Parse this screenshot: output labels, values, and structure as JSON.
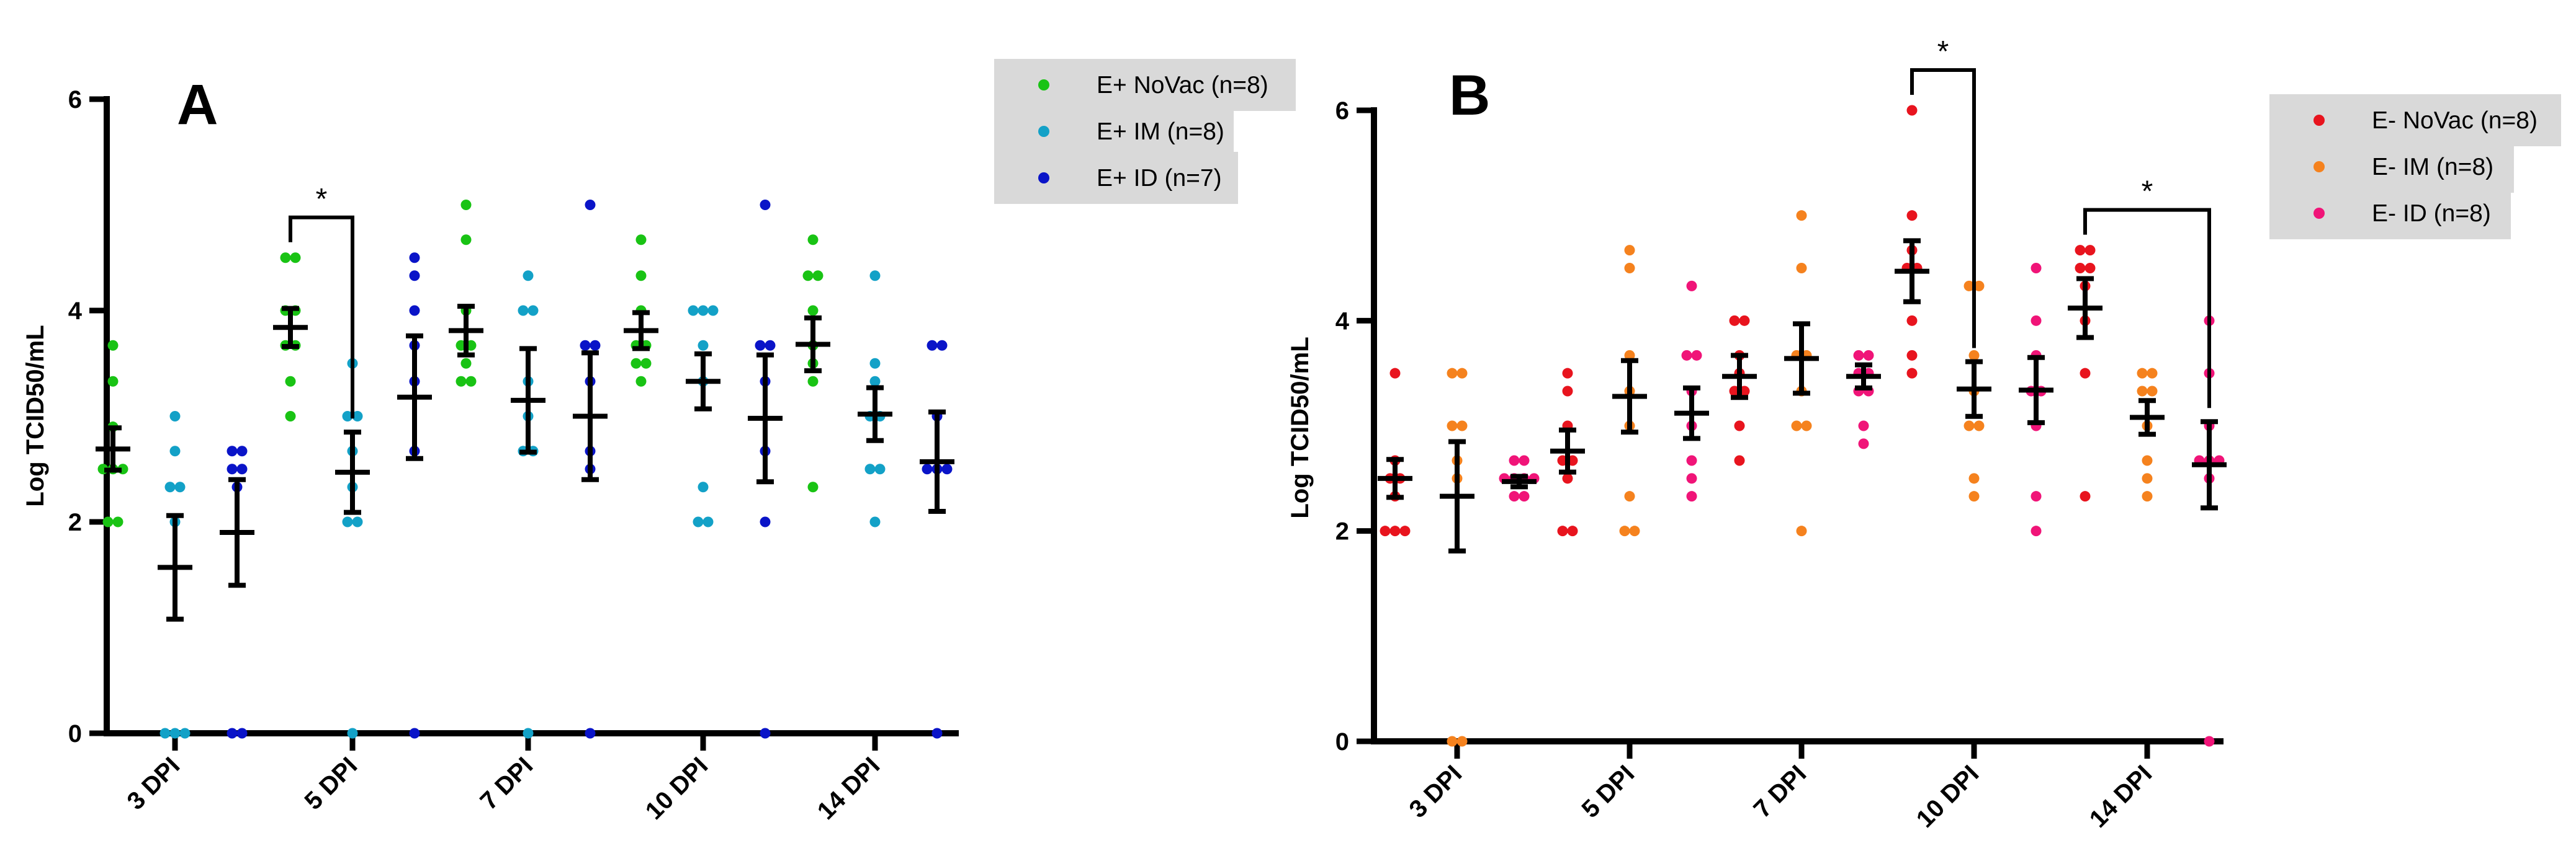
{
  "chart_data": [
    {
      "type": "scatter",
      "panel": "A",
      "ylabel": "Log TCID50/mL",
      "ylim": [
        0,
        6
      ],
      "yticks": [
        0,
        2,
        4,
        6
      ],
      "categories": [
        "3 DPI",
        "5 DPI",
        "7 DPI",
        "10 DPI",
        "14 DPI"
      ],
      "legend": {
        "position": "right-top"
      },
      "series": [
        {
          "name": "E+ NoVac (n=8)",
          "color": "#19c314",
          "points": [
            [
              3.67,
              3.33,
              2.9,
              2.5,
              2.5,
              2.5,
              2.0,
              2.0
            ],
            [
              4.5,
              4.5,
              4.0,
              4.0,
              3.67,
              3.67,
              3.33,
              3.0
            ],
            [
              5.0,
              4.67,
              4.0,
              3.67,
              3.67,
              3.5,
              3.33,
              3.33
            ],
            [
              4.67,
              4.33,
              4.0,
              3.67,
              3.67,
              3.5,
              3.5,
              3.33
            ],
            [
              4.67,
              4.33,
              4.33,
              4.0,
              3.67,
              3.5,
              3.33,
              2.33
            ]
          ],
          "mean": [
            2.69,
            3.84,
            3.81,
            3.81,
            3.68
          ],
          "sem": [
            0.2,
            0.18,
            0.23,
            0.17,
            0.25
          ]
        },
        {
          "name": "E+ IM (n=8)",
          "color": "#13a1c7",
          "points": [
            [
              3.0,
              2.67,
              2.33,
              2.33,
              2.0,
              0,
              0,
              0
            ],
            [
              3.5,
              3.0,
              3.0,
              2.67,
              2.33,
              2.0,
              2.0,
              0
            ],
            [
              4.33,
              4.0,
              4.0,
              3.33,
              3.0,
              2.67,
              2.67,
              0
            ],
            [
              4.0,
              4.0,
              4.0,
              3.67,
              3.33,
              2.33,
              2.0,
              2.0
            ],
            [
              4.33,
              3.5,
              3.33,
              3.0,
              3.0,
              2.5,
              2.5,
              2.0
            ]
          ],
          "mean": [
            1.57,
            2.47,
            3.15,
            3.33,
            3.02
          ],
          "sem": [
            0.49,
            0.38,
            0.49,
            0.26,
            0.25
          ]
        },
        {
          "name": "E+ ID (n=7)",
          "color": "#0a14c8",
          "points": [
            [
              2.67,
              2.67,
              2.5,
              2.5,
              2.33,
              0,
              0
            ],
            [
              4.5,
              4.33,
              4.0,
              3.67,
              3.33,
              2.67,
              0
            ],
            [
              5.0,
              3.67,
              3.67,
              3.33,
              2.67,
              2.5,
              0
            ],
            [
              5.0,
              3.67,
              3.67,
              3.33,
              2.67,
              2.0,
              0
            ],
            [
              3.67,
              3.67,
              3.0,
              2.5,
              2.5,
              2.5,
              0
            ]
          ],
          "mean": [
            1.9,
            3.18,
            3.0,
            2.98,
            2.57
          ],
          "sem": [
            0.5,
            0.58,
            0.6,
            0.6,
            0.47
          ]
        }
      ],
      "annotations": [
        {
          "text": "*",
          "between": [
            "E+ NoVac (n=8)",
            "E+ IM (n=8)"
          ],
          "category": "5 DPI"
        }
      ]
    },
    {
      "type": "scatter",
      "panel": "B",
      "ylabel": "Log TCID50/mL",
      "ylim": [
        0,
        6
      ],
      "yticks": [
        0,
        2,
        4,
        6
      ],
      "categories": [
        "3 DPI",
        "5 DPI",
        "7 DPI",
        "10 DPI",
        "14 DPI"
      ],
      "legend": {
        "position": "right-top"
      },
      "series": [
        {
          "name": "E- NoVac (n=8)",
          "color": "#e8141e",
          "points": [
            [
              3.5,
              2.67,
              2.5,
              2.5,
              2.33,
              2.0,
              2.0,
              2.0
            ],
            [
              3.5,
              3.33,
              3.0,
              2.67,
              2.67,
              2.5,
              2.0,
              2.0
            ],
            [
              4.0,
              4.0,
              3.67,
              3.5,
              3.33,
              3.33,
              3.0,
              2.67
            ],
            [
              6.0,
              5.0,
              4.67,
              4.5,
              4.5,
              4.0,
              3.67,
              3.5
            ],
            [
              4.67,
              4.67,
              4.5,
              4.5,
              4.33,
              4.0,
              3.5,
              2.33
            ]
          ],
          "mean": [
            2.5,
            2.76,
            3.47,
            4.47,
            4.12
          ],
          "sem": [
            0.18,
            0.2,
            0.2,
            0.29,
            0.28
          ]
        },
        {
          "name": "E- IM (n=8)",
          "color": "#f5821e",
          "points": [
            [
              3.5,
              3.5,
              3.0,
              3.0,
              2.67,
              2.5,
              0,
              0
            ],
            [
              4.67,
              4.5,
              3.67,
              3.33,
              3.0,
              2.33,
              2.0,
              2.0
            ],
            [
              5.0,
              4.5,
              3.67,
              3.67,
              3.33,
              3.0,
              3.0,
              2.0
            ],
            [
              4.33,
              4.33,
              3.67,
              3.33,
              3.0,
              3.0,
              2.5,
              2.33
            ],
            [
              3.5,
              3.5,
              3.33,
              3.33,
              3.0,
              2.67,
              2.5,
              2.33
            ]
          ],
          "mean": [
            2.33,
            3.28,
            3.64,
            3.35,
            3.08
          ],
          "sem": [
            0.52,
            0.34,
            0.33,
            0.26,
            0.16
          ]
        },
        {
          "name": "E- ID (n=8)",
          "color": "#f01478",
          "points": [
            [
              2.67,
              2.67,
              2.5,
              2.5,
              2.5,
              2.5,
              2.33,
              2.33
            ],
            [
              4.33,
              3.67,
              3.67,
              3.33,
              3.0,
              2.67,
              2.5,
              2.33
            ],
            [
              3.67,
              3.67,
              3.5,
              3.5,
              3.33,
              3.33,
              3.0,
              2.83
            ],
            [
              4.5,
              4.0,
              3.67,
              3.33,
              3.33,
              3.0,
              2.33,
              2.0
            ],
            [
              4.0,
              3.5,
              3.0,
              2.67,
              2.67,
              2.67,
              2.5,
              0
            ]
          ],
          "mean": [
            2.47,
            3.12,
            3.47,
            3.34,
            2.63
          ],
          "sem": [
            0.05,
            0.24,
            0.11,
            0.31,
            0.41
          ]
        }
      ],
      "annotations": [
        {
          "text": "*",
          "between": [
            "E- NoVac (n=8)",
            "E- IM (n=8)"
          ],
          "category": "10 DPI"
        },
        {
          "text": "*",
          "between": [
            "E- NoVac (n=8)",
            "E- ID (n=8)"
          ],
          "category": "14 DPI"
        }
      ]
    }
  ]
}
